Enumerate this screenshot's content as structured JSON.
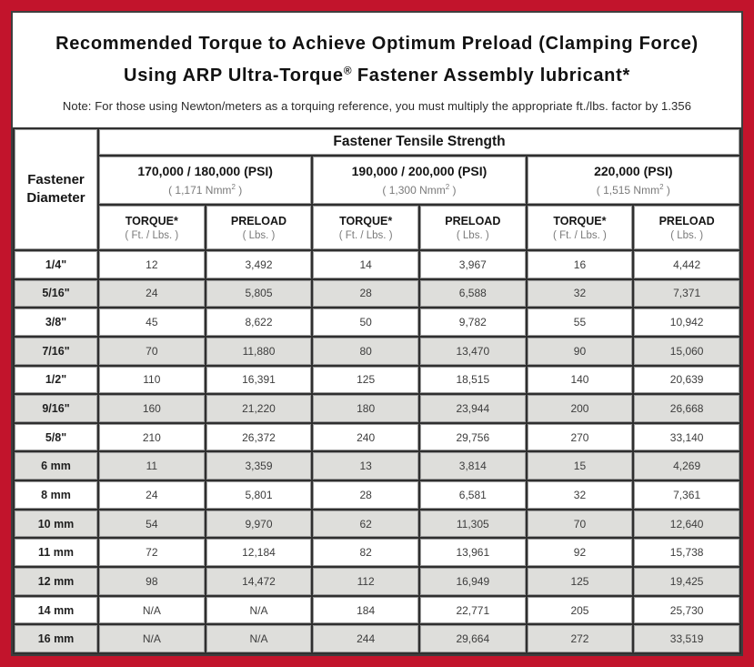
{
  "colors": {
    "frame_red": "#c2142c",
    "panel_border": "#3e3e3e",
    "header_gray": "#d3d3d0",
    "alt_row_gray": "#dededb"
  },
  "title": {
    "line1": "Recommended Torque to Achieve Optimum Preload (Clamping Force)",
    "line2_pre": "Using ARP Ultra-Torque",
    "line2_sup": "®",
    "line2_post": " Fastener Assembly lubricant*"
  },
  "note": "Note: For those using Newton/meters as a torquing reference, you must multiply the appropriate ft./lbs. factor by 1.356",
  "table": {
    "corner": {
      "line1": "Fastener",
      "line2": "Diameter"
    },
    "group_header": "Fastener Tensile Strength",
    "groups": [
      {
        "psi": "170,000 / 180,000 (PSI)",
        "nmm_open": "( 1,171 Nmm",
        "nmm_sup": "2",
        "nmm_close": " )"
      },
      {
        "psi": "190,000 / 200,000 (PSI)",
        "nmm_open": "( 1,300 Nmm",
        "nmm_sup": "2",
        "nmm_close": " )"
      },
      {
        "psi": "220,000 (PSI)",
        "nmm_open": "( 1,515 Nmm",
        "nmm_sup": "2",
        "nmm_close": " )"
      }
    ],
    "col_headers": {
      "torque_label": "TORQUE*",
      "torque_sub": "( Ft. / Lbs. )",
      "preload_label": "PRELOAD",
      "preload_sub": "( Lbs. )"
    },
    "rows": [
      {
        "diameter": "1/4\"",
        "values": [
          "12",
          "3,492",
          "14",
          "3,967",
          "16",
          "4,442"
        ]
      },
      {
        "diameter": "5/16\"",
        "values": [
          "24",
          "5,805",
          "28",
          "6,588",
          "32",
          "7,371"
        ]
      },
      {
        "diameter": "3/8\"",
        "values": [
          "45",
          "8,622",
          "50",
          "9,782",
          "55",
          "10,942"
        ]
      },
      {
        "diameter": "7/16\"",
        "values": [
          "70",
          "11,880",
          "80",
          "13,470",
          "90",
          "15,060"
        ]
      },
      {
        "diameter": "1/2\"",
        "values": [
          "110",
          "16,391",
          "125",
          "18,515",
          "140",
          "20,639"
        ]
      },
      {
        "diameter": "9/16\"",
        "values": [
          "160",
          "21,220",
          "180",
          "23,944",
          "200",
          "26,668"
        ]
      },
      {
        "diameter": "5/8\"",
        "values": [
          "210",
          "26,372",
          "240",
          "29,756",
          "270",
          "33,140"
        ]
      },
      {
        "diameter": "6 mm",
        "values": [
          "11",
          "3,359",
          "13",
          "3,814",
          "15",
          "4,269"
        ]
      },
      {
        "diameter": "8 mm",
        "values": [
          "24",
          "5,801",
          "28",
          "6,581",
          "32",
          "7,361"
        ]
      },
      {
        "diameter": "10 mm",
        "values": [
          "54",
          "9,970",
          "62",
          "11,305",
          "70",
          "12,640"
        ]
      },
      {
        "diameter": "11 mm",
        "values": [
          "72",
          "12,184",
          "82",
          "13,961",
          "92",
          "15,738"
        ]
      },
      {
        "diameter": "12 mm",
        "values": [
          "98",
          "14,472",
          "112",
          "16,949",
          "125",
          "19,425"
        ]
      },
      {
        "diameter": "14 mm",
        "values": [
          "N/A",
          "N/A",
          "184",
          "22,771",
          "205",
          "25,730"
        ]
      },
      {
        "diameter": "16 mm",
        "values": [
          "N/A",
          "N/A",
          "244",
          "29,664",
          "272",
          "33,519"
        ]
      }
    ]
  }
}
